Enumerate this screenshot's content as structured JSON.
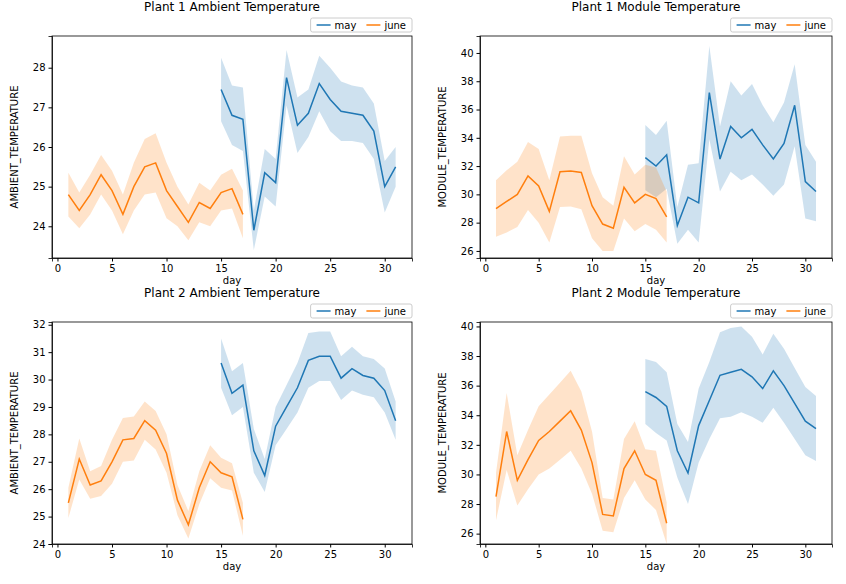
{
  "chart_data": [
    {
      "type": "line",
      "title": "Plant 1 Ambient Temperature",
      "x_label": "day",
      "y_label": "AMBIENT_TEMPERATURE",
      "xlim": [
        -0.5,
        32.5
      ],
      "xticks": [
        0,
        5,
        10,
        15,
        20,
        25,
        30
      ],
      "ylim": [
        23.2,
        28.8
      ],
      "yticks": [
        24,
        25,
        26,
        27,
        28
      ],
      "legend": "upper right",
      "series": [
        {
          "name": "may",
          "color": "#1f77b4",
          "x": [
            15,
            16,
            17,
            18,
            19,
            20,
            21,
            22,
            23,
            24,
            25,
            26,
            27,
            28,
            29,
            30,
            31
          ],
          "values": [
            27.45,
            26.8,
            26.7,
            23.9,
            25.35,
            25.1,
            27.75,
            26.55,
            26.85,
            27.6,
            27.2,
            26.9,
            26.85,
            26.8,
            26.4,
            25.0,
            25.5
          ],
          "error": [
            0.8,
            0.75,
            0.8,
            0.5,
            0.6,
            0.6,
            0.7,
            0.7,
            0.6,
            0.7,
            0.8,
            0.75,
            0.7,
            0.7,
            0.7,
            0.65,
            0.5
          ]
        },
        {
          "name": "june",
          "color": "#ff7f0e",
          "x": [
            1,
            2,
            3,
            4,
            5,
            6,
            7,
            8,
            9,
            10,
            11,
            12,
            13,
            14,
            15,
            16,
            17
          ],
          "values": [
            24.8,
            24.4,
            24.8,
            25.3,
            24.9,
            24.3,
            25.0,
            25.5,
            25.6,
            24.9,
            24.5,
            24.1,
            24.6,
            24.45,
            24.85,
            24.95,
            24.3
          ],
          "error": [
            0.55,
            0.45,
            0.5,
            0.5,
            0.5,
            0.5,
            0.6,
            0.7,
            0.75,
            0.7,
            0.5,
            0.45,
            0.5,
            0.45,
            0.45,
            0.5,
            0.6
          ]
        }
      ]
    },
    {
      "type": "line",
      "title": "Plant 1 Module Temperature",
      "x_label": "day",
      "y_label": "MODULE_TEMPERATURE",
      "xlim": [
        -0.5,
        32.5
      ],
      "xticks": [
        0,
        5,
        10,
        15,
        20,
        25,
        30
      ],
      "ylim": [
        25.5,
        41.2
      ],
      "yticks": [
        26,
        28,
        30,
        32,
        34,
        36,
        38,
        40
      ],
      "legend": "upper right",
      "series": [
        {
          "name": "may",
          "color": "#1f77b4",
          "x": [
            15,
            16,
            17,
            18,
            19,
            20,
            21,
            22,
            23,
            24,
            25,
            26,
            27,
            28,
            29,
            30,
            31
          ],
          "values": [
            32.6,
            32.0,
            32.8,
            27.8,
            29.8,
            29.4,
            37.2,
            32.5,
            34.8,
            34.0,
            34.6,
            33.5,
            32.5,
            33.6,
            36.3,
            30.9,
            30.2
          ],
          "error": [
            2.3,
            2.2,
            2.4,
            1.3,
            2.3,
            2.8,
            3.3,
            2.3,
            3.2,
            3.0,
            3.2,
            2.8,
            2.6,
            2.9,
            2.9,
            2.6,
            2.1
          ]
        },
        {
          "name": "june",
          "color": "#ff7f0e",
          "x": [
            1,
            2,
            3,
            4,
            5,
            6,
            7,
            8,
            9,
            10,
            11,
            12,
            13,
            14,
            15,
            16,
            17
          ],
          "values": [
            29.0,
            29.5,
            30.0,
            31.3,
            30.6,
            28.8,
            31.6,
            31.65,
            31.55,
            29.2,
            27.9,
            27.6,
            30.5,
            29.4,
            30.0,
            29.7,
            28.4
          ],
          "error": [
            2.0,
            2.2,
            2.3,
            2.4,
            2.6,
            2.2,
            2.5,
            2.5,
            2.6,
            2.3,
            1.9,
            1.6,
            2.2,
            2.0,
            2.1,
            2.2,
            1.8
          ]
        }
      ]
    },
    {
      "type": "line",
      "title": "Plant 2 Ambient Temperature",
      "x_label": "day",
      "y_label": "AMBIENT_TEMPERATURE",
      "xlim": [
        -0.5,
        32.5
      ],
      "xticks": [
        0,
        5,
        10,
        15,
        20,
        25,
        30
      ],
      "ylim": [
        24,
        32.1
      ],
      "yticks": [
        24,
        25,
        26,
        27,
        28,
        29,
        30,
        31,
        32
      ],
      "legend": "upper right",
      "series": [
        {
          "name": "may",
          "color": "#1f77b4",
          "x": [
            15,
            16,
            17,
            18,
            19,
            20,
            21,
            22,
            23,
            24,
            25,
            26,
            27,
            28,
            29,
            30,
            31
          ],
          "values": [
            30.6,
            29.5,
            29.8,
            27.4,
            26.5,
            28.3,
            29.0,
            29.7,
            30.7,
            30.85,
            30.85,
            30.05,
            30.4,
            30.15,
            30.05,
            29.6,
            28.5
          ],
          "error": [
            0.9,
            0.8,
            0.8,
            0.8,
            0.6,
            0.7,
            0.8,
            0.9,
            1.0,
            0.9,
            0.9,
            0.8,
            0.8,
            0.7,
            0.7,
            0.8,
            0.7
          ]
        },
        {
          "name": "june",
          "color": "#ff7f0e",
          "x": [
            1,
            2,
            3,
            4,
            5,
            6,
            7,
            8,
            9,
            10,
            11,
            12,
            13,
            14,
            15,
            16,
            17
          ],
          "values": [
            25.5,
            27.1,
            26.15,
            26.3,
            27.0,
            27.8,
            27.85,
            28.5,
            28.15,
            27.3,
            25.6,
            24.7,
            26.05,
            27.0,
            26.6,
            26.45,
            24.9
          ],
          "error": [
            0.55,
            0.75,
            0.5,
            0.55,
            0.8,
            0.8,
            0.8,
            0.7,
            0.7,
            0.7,
            0.55,
            0.5,
            0.6,
            0.6,
            0.55,
            0.5,
            0.6
          ]
        }
      ]
    },
    {
      "type": "line",
      "title": "Plant 2 Module Temperature",
      "x_label": "day",
      "y_label": "MODULE_TEMPERATURE",
      "xlim": [
        -0.5,
        32.5
      ],
      "xticks": [
        0,
        5,
        10,
        15,
        20,
        25,
        30
      ],
      "ylim": [
        25.3,
        40.3
      ],
      "yticks": [
        26,
        28,
        30,
        32,
        34,
        36,
        38,
        40
      ],
      "legend": "upper right",
      "series": [
        {
          "name": "may",
          "color": "#1f77b4",
          "x": [
            15,
            16,
            17,
            18,
            19,
            20,
            21,
            22,
            23,
            24,
            25,
            26,
            27,
            28,
            29,
            30,
            31
          ],
          "values": [
            35.6,
            35.2,
            34.6,
            31.6,
            30.1,
            33.3,
            35.0,
            36.7,
            36.9,
            37.1,
            36.6,
            35.8,
            37.0,
            36.0,
            34.8,
            33.6,
            33.1
          ],
          "error": [
            2.2,
            2.4,
            2.3,
            1.8,
            2.1,
            2.5,
            2.6,
            2.9,
            3.0,
            2.9,
            2.7,
            2.3,
            2.5,
            2.5,
            2.4,
            2.3,
            2.2
          ]
        },
        {
          "name": "june",
          "color": "#ff7f0e",
          "x": [
            1,
            2,
            3,
            4,
            5,
            6,
            7,
            8,
            9,
            10,
            11,
            12,
            13,
            14,
            15,
            16,
            17
          ],
          "values": [
            28.5,
            32.9,
            29.6,
            31.0,
            32.3,
            32.9,
            33.6,
            34.3,
            33.0,
            30.8,
            27.3,
            27.2,
            30.4,
            31.6,
            30.0,
            29.6,
            26.7
          ],
          "error": [
            1.6,
            2.6,
            1.7,
            2.0,
            2.3,
            2.5,
            2.6,
            2.7,
            2.6,
            2.1,
            1.1,
            1.1,
            2.0,
            2.0,
            1.7,
            2.0,
            1.4
          ]
        }
      ]
    }
  ]
}
